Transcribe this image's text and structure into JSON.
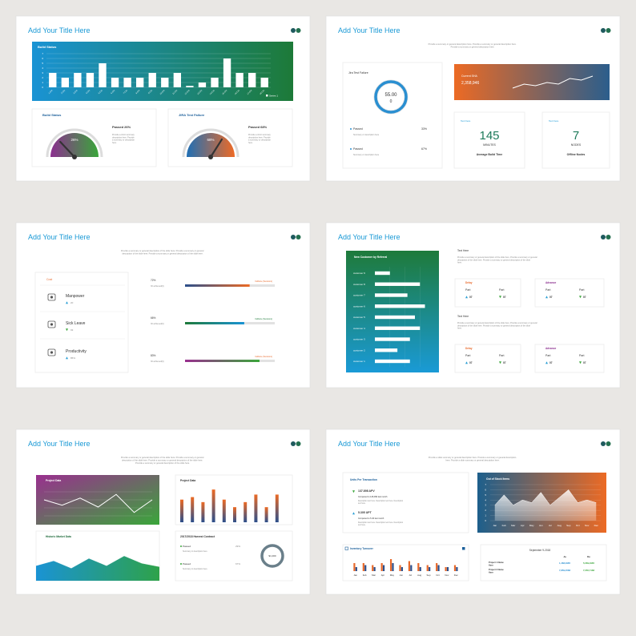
{
  "slides": [
    {
      "title": "Add Your Title Here",
      "build_chart": {
        "title": "Build Status",
        "categories": [
          "1-Oct",
          "2-Oct",
          "3-Oct",
          "4-Oct",
          "5-Oct",
          "6-Oct",
          "7-Oct",
          "8-Oct",
          "9-Oct",
          "10-Oct",
          "11-Oct",
          "12-Oct",
          "13-Oct",
          "14-Oct",
          "15-Oct",
          "16-Oct",
          "17-Oct",
          "18-Oct"
        ],
        "values": [
          3,
          2,
          3,
          3,
          5,
          2,
          2,
          2,
          3,
          2,
          3,
          0.3,
          1,
          2,
          6,
          3,
          3,
          2
        ],
        "ylim": [
          0,
          7
        ],
        "yticks": [
          0,
          1,
          2,
          3,
          4,
          5,
          6,
          7
        ],
        "series_name": "Series 1"
      },
      "gauges": [
        {
          "title": "Build Status",
          "value": 26,
          "value_label": "26%",
          "caption": "Passed 26%",
          "description": "Provide a short summary description here. Provide a summary or description here."
        },
        {
          "title": "JIRA Test Failure",
          "value": 68,
          "value_label": "68%",
          "caption": "Passed 68%",
          "description": "Provide a short summary description here. Provide a summary or description here."
        }
      ]
    },
    {
      "title": "Add Your Title Here",
      "summary": "Provide a summary or general description here. Provide a summary or general description here. Provide a summary or general description here.",
      "ring": {
        "title": "Jira Test Failure",
        "value": "55.00",
        "sub": "0"
      },
      "items": [
        {
          "label": "Passed",
          "value": 33,
          "value_label": "33%",
          "description": "Summary or description here"
        },
        {
          "label": "Passed",
          "value": 67,
          "value_label": "67%",
          "description": "Summary or description here"
        }
      ],
      "sha": {
        "title": "Current SHA",
        "value": "2,358,946",
        "trend": [
          2,
          3,
          2.6,
          3.4,
          3,
          4.4,
          4,
          5
        ]
      },
      "stats": [
        {
          "title": "Text here",
          "value": "145",
          "unit": "MINUTES",
          "label": "Average Build Time"
        },
        {
          "title": "Text here",
          "value": "7",
          "unit": "NODES",
          "label": "Offline Nodes"
        }
      ]
    },
    {
      "title": "Add Your Title Here",
      "summary": "Provide a summary or general description of the slide here. Provide a summary or general description of the slide here. Provide a summary or general description of the slide here.",
      "cost_title": "Cost",
      "rows": [
        {
          "label": "Manpower",
          "value": "20",
          "trend": "up"
        },
        {
          "label": "Sick Leave",
          "value": "93",
          "trend": "down"
        },
        {
          "label": "Productivity",
          "value": "85%",
          "trend": "up"
        }
      ],
      "progress": [
        {
          "percent": 72,
          "percent_label": "72%",
          "caption": "30 achieved(0)",
          "legend": "Caffeine (Sessions)"
        },
        {
          "percent": 66,
          "percent_label": "66%",
          "caption": "30 achieved(0)",
          "legend": "Caffeine (Sessions)"
        },
        {
          "percent": 83,
          "percent_label": "83%",
          "caption": "30 achieved(0)",
          "legend": "Caffeine (Sessions)"
        }
      ]
    },
    {
      "title": "Add Your Title Here",
      "chart": {
        "title": "New Customer by Referral",
        "categories": [
          "customer 9",
          "customer 8",
          "customer 7",
          "customer 6",
          "customer 5",
          "customer 4",
          "customer 3",
          "customer 2",
          "customer 1"
        ],
        "values": [
          3,
          9,
          6.5,
          10,
          8,
          9,
          7,
          4.5,
          7
        ],
        "xlim": [
          0,
          12
        ]
      },
      "blocks": [
        {
          "title": "Text Here",
          "description": "Provide a summary or general description of the slide here. Provide a summary or general description of the slide here. Provide a summary or general description of the slide here.",
          "groups": [
            {
              "title": "Delay",
              "items": [
                {
                  "label": "Part",
                  "value": "07",
                  "trend": "up"
                },
                {
                  "label": "Part",
                  "value": "07",
                  "trend": "down"
                }
              ]
            },
            {
              "title": "Advance",
              "items": [
                {
                  "label": "Part",
                  "value": "07",
                  "trend": "up"
                },
                {
                  "label": "Part",
                  "value": "07",
                  "trend": "down"
                }
              ]
            }
          ]
        },
        {
          "title": "Text Here",
          "description": "Provide a summary or general description of the slide here. Provide a summary or general description of the slide here. Provide a summary or general description of the slide here.",
          "groups": [
            {
              "title": "Delay",
              "items": [
                {
                  "label": "Part",
                  "value": "07",
                  "trend": "up"
                },
                {
                  "label": "Part",
                  "value": "07",
                  "trend": "down"
                }
              ]
            },
            {
              "title": "Advance",
              "items": [
                {
                  "label": "Part",
                  "value": "07",
                  "trend": "up"
                },
                {
                  "label": "Part",
                  "value": "07",
                  "trend": "down"
                }
              ]
            }
          ]
        }
      ]
    },
    {
      "title": "Add Your Title Here",
      "summary": "Provide a summary or general description of the slide here. Provide a summary or general description of the slide here. Provide a summary or general description of the slide here. Provide a summary or general description of the slide here.",
      "line": {
        "title": "Project Data",
        "values": [
          6,
          4.5,
          6.5,
          4,
          7.5,
          2.5,
          6
        ],
        "ylim": [
          0,
          10
        ]
      },
      "bars": {
        "title": "Project Data",
        "values": [
          4.5,
          5,
          4,
          6.5,
          4.5,
          3,
          4,
          5.5,
          3,
          5.5
        ],
        "ylim": [
          0,
          7
        ]
      },
      "area": {
        "title": "Historic Market Data",
        "values": [
          3,
          4,
          2.5,
          4.5,
          3,
          5,
          3.5,
          2.8
        ],
        "ylim": [
          0,
          8
        ]
      },
      "harvest": {
        "title": "2017/2018 Harvest Contract",
        "items": [
          {
            "label": "Passed",
            "value": 29,
            "value_label": "29%",
            "description": "Summary or description here"
          },
          {
            "label": "Passed",
            "value": 67,
            "value_label": "67%",
            "description": "Summary or description here"
          }
        ],
        "donut_label": "$1,000"
      }
    },
    {
      "title": "Add Your Title Here",
      "summary": "Provide a slide summary or general description here. Provide a summary or general description here. Provide a slide summary or general description here.",
      "upt": {
        "title": "Units Per Transaction",
        "items": [
          {
            "value": "137.898 APV",
            "trend": "down",
            "compare": "Compared to 128,999 last month",
            "description": "Description text here. Description text here. Description text here."
          },
          {
            "value": "5.305 UPT",
            "trend": "up",
            "compare": "Compared to 5.46 last month",
            "description": "Description text here. Description text here. Description text here."
          }
        ]
      },
      "stock": {
        "title": "Out of Stock Items",
        "categories": [
          "Jan",
          "Feb",
          "Mar",
          "Apr",
          "May",
          "Jun",
          "Jul",
          "Aug",
          "Sep",
          "Oct",
          "Nov",
          "Dec"
        ],
        "values": [
          3,
          5,
          3,
          4,
          3.5,
          5.5,
          3,
          4.5,
          6,
          3.5,
          4,
          3.5
        ],
        "ylim": [
          0,
          7
        ],
        "yticks": [
          0,
          1,
          2,
          3,
          4,
          5,
          6,
          7
        ]
      },
      "turnover": {
        "title": "Inventory Turnover",
        "categories": [
          "Jan",
          "Feb",
          "Mar",
          "Apr",
          "May",
          "Jun",
          "Jul",
          "Aug",
          "Sep",
          "Oct",
          "Nov",
          "Dec"
        ],
        "series": [
          {
            "values": [
              2,
              2,
              1.5,
              2,
              3,
              1.5,
              2.5,
              2,
              1.5,
              2,
              1,
              1.5
            ]
          },
          {
            "values": [
              1,
              1.5,
              1,
              1.5,
              2,
              1,
              1.5,
              1,
              1,
              1.5,
              1,
              1
            ]
          }
        ],
        "ylim": [
          0,
          4
        ]
      },
      "table": {
        "title": "September 9-2018",
        "headers": [
          "Ja",
          "De"
        ],
        "rows": [
          [
            "Project 1 Name Here",
            "1,468,4965",
            "5,069,4965"
          ],
          [
            "Project 2 Name Here",
            "7,859,4568",
            "7,050,7168"
          ]
        ]
      }
    }
  ]
}
